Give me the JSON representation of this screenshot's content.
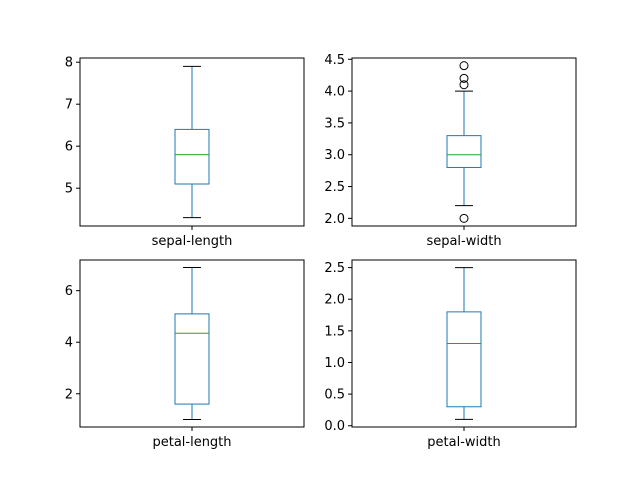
{
  "colors": {
    "box": "#1f77b4",
    "median": "#2ca02c",
    "whisker": "#1f77b4",
    "cap": "#000000",
    "flier": "#000000"
  },
  "chart_data": [
    {
      "type": "box",
      "label": "sepal-length",
      "whislo": 4.3,
      "q1": 5.1,
      "median": 5.8,
      "q3": 6.4,
      "whishi": 7.9,
      "fliers": [],
      "ylim": [
        4.1,
        8.1
      ],
      "yticks": [
        5,
        6,
        7,
        8
      ],
      "ytick_labels": [
        "5",
        "6",
        "7",
        "8"
      ]
    },
    {
      "type": "box",
      "label": "sepal-width",
      "whislo": 2.2,
      "q1": 2.8,
      "median": 3.0,
      "q3": 3.3,
      "whishi": 4.0,
      "fliers": [
        2.0,
        4.1,
        4.2,
        4.4
      ],
      "ylim": [
        1.88,
        4.52
      ],
      "yticks": [
        2.0,
        2.5,
        3.0,
        3.5,
        4.0,
        4.5
      ],
      "ytick_labels": [
        "2.0",
        "2.5",
        "3.0",
        "3.5",
        "4.0",
        "4.5"
      ]
    },
    {
      "type": "box",
      "label": "petal-length",
      "whislo": 1.0,
      "q1": 1.6,
      "median": 4.35,
      "q3": 5.1,
      "whishi": 6.9,
      "fliers": [],
      "ylim": [
        0.71,
        7.19
      ],
      "yticks": [
        2,
        4,
        6
      ],
      "ytick_labels": [
        "2",
        "4",
        "6"
      ]
    },
    {
      "type": "box",
      "label": "petal-width",
      "whislo": 0.1,
      "q1": 0.3,
      "median": 1.3,
      "q3": 1.8,
      "whishi": 2.5,
      "fliers": [],
      "ylim": [
        -0.02,
        2.62
      ],
      "yticks": [
        0.0,
        0.5,
        1.0,
        1.5,
        2.0,
        2.5
      ],
      "ytick_labels": [
        "0.0",
        "0.5",
        "1.0",
        "1.5",
        "2.0",
        "2.5"
      ]
    }
  ]
}
